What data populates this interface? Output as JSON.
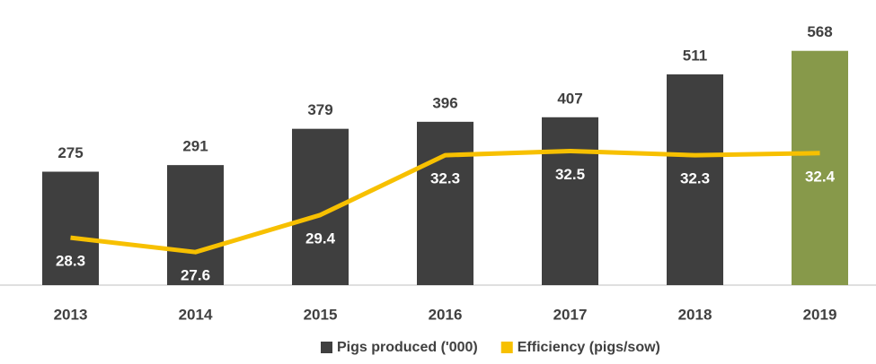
{
  "chart_data": {
    "type": "bar",
    "categories": [
      "2013",
      "2014",
      "2015",
      "2016",
      "2017",
      "2018",
      "2019"
    ],
    "series": [
      {
        "name": "Pigs produced ('000)",
        "type": "bar",
        "color": "#3f3f3f",
        "colors": [
          "#3f3f3f",
          "#3f3f3f",
          "#3f3f3f",
          "#3f3f3f",
          "#3f3f3f",
          "#3f3f3f",
          "#87994a"
        ],
        "values": [
          275,
          291,
          379,
          396,
          407,
          511,
          568
        ]
      },
      {
        "name": "Efficiency (pigs/sow)",
        "type": "line",
        "axis": "y2",
        "color": "#f7c000",
        "values": [
          28.3,
          27.6,
          29.4,
          32.3,
          32.5,
          32.3,
          32.4
        ]
      }
    ],
    "ylim": [
      0,
      600
    ],
    "y2lim": [
      26,
      38
    ],
    "legend": "bottom"
  }
}
